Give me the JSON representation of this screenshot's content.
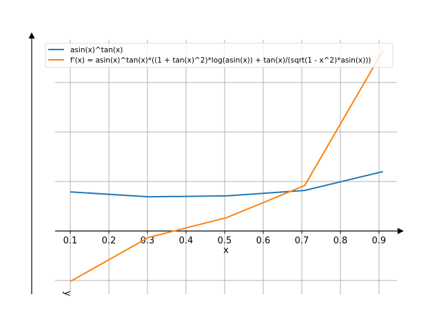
{
  "chart_data": {
    "type": "line",
    "title": "",
    "xlabel": "x",
    "ylabel": "y",
    "xlim": [
      0.06,
      0.95
    ],
    "ylim": [
      -1.25,
      4.0
    ],
    "grid": true,
    "legend_position": "top",
    "x_ticks": [
      "0.1",
      "0.2",
      "0.3",
      "0.4",
      "0.5",
      "0.6",
      "0.7",
      "0.8",
      "0.9"
    ],
    "y_gridlines": [
      -1,
      0,
      1,
      2,
      3
    ],
    "x": [
      0.1,
      0.3025,
      0.505,
      0.7075,
      0.91
    ],
    "series": [
      {
        "name": "asin(x)^tan(x)",
        "color": "#1f77b4",
        "values": [
          0.79,
          0.69,
          0.71,
          0.82,
          1.2
        ]
      },
      {
        "name": "f'(x) = asin(x)^tan(x)*((1 + tan(x)^2)*log(asin(x)) + tan(x)/(sqrt(1 - x^2)*asin(x)))",
        "color": "#ff7f0e",
        "values": [
          -1.02,
          -0.13,
          0.27,
          0.92,
          3.64
        ]
      }
    ]
  }
}
